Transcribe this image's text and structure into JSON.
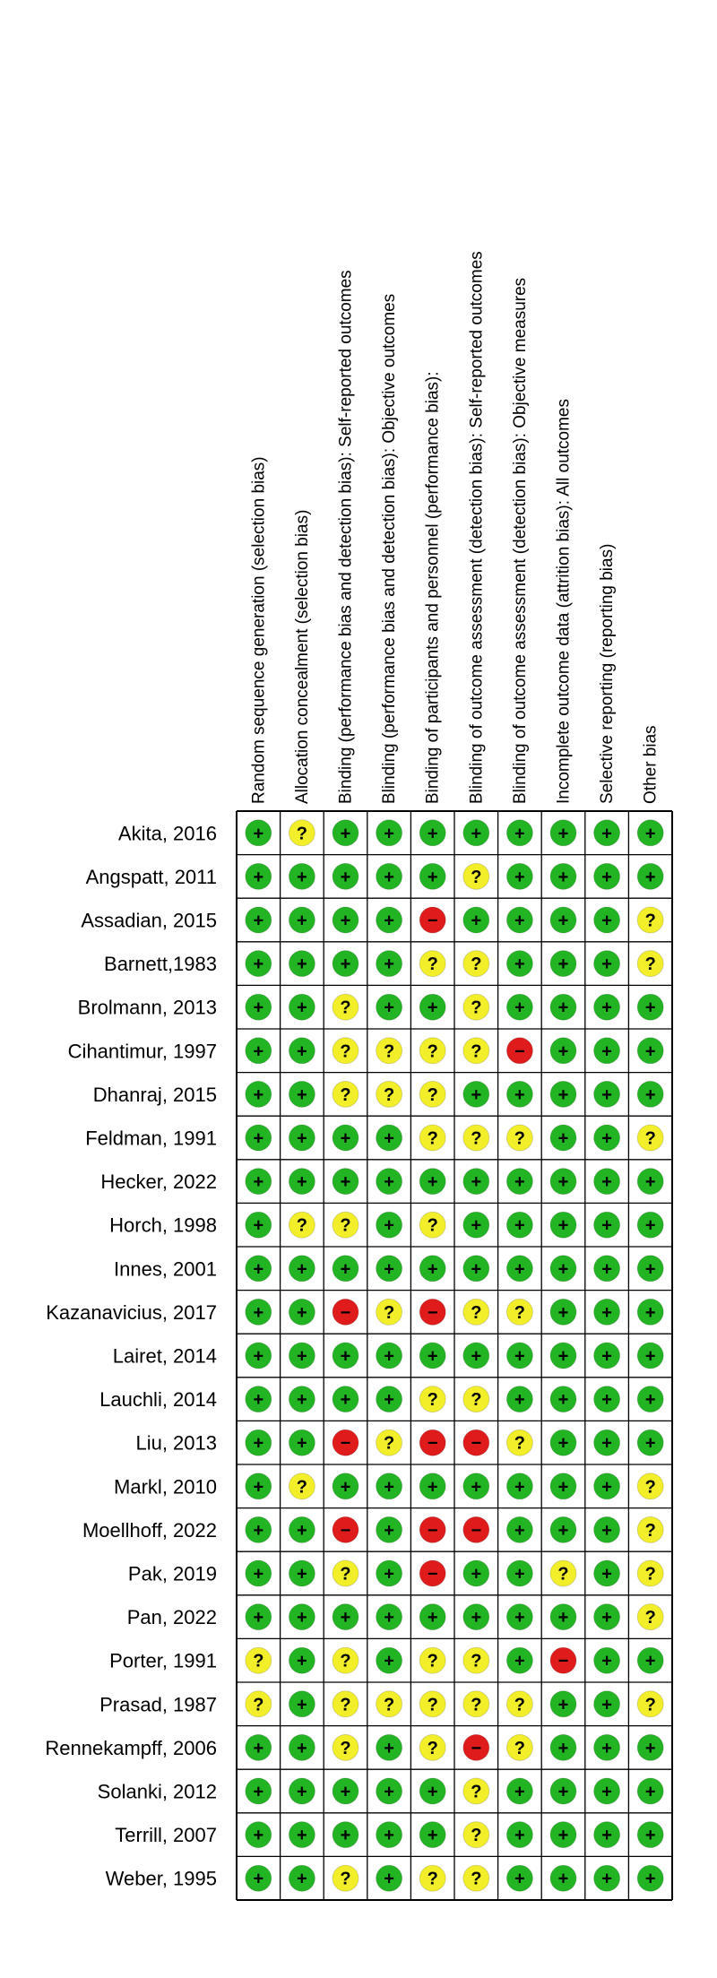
{
  "chart_data": {
    "type": "table",
    "title": "",
    "domains": [
      "Random sequence generation (selection bias)",
      "Allocation concealment (selection bias)",
      "Binding (performance bias and detection bias): Self-reported outcomes",
      "Blinding (performance bias and detection bias): Objective outcomes",
      "Binding of participants and personnel (performance bias):",
      "Blinding of outcome assessment (detection bias): Self-reported outcomes",
      "Blinding of outcome assessment (detection bias): Objective measures",
      "Incomplete outcome data (attrition bias): All outcomes",
      "Selective reporting (reporting bias)",
      "Other bias"
    ],
    "legend": {
      "low": {
        "symbol": "+",
        "color": "#22b422"
      },
      "unclear": {
        "symbol": "?",
        "color": "#f2ef2a"
      },
      "high": {
        "symbol": "−",
        "color": "#e01b1b"
      }
    },
    "studies": [
      {
        "name": "Akita, 2016",
        "ratings": [
          "low",
          "unclear",
          "low",
          "low",
          "low",
          "low",
          "low",
          "low",
          "low",
          "low"
        ]
      },
      {
        "name": "Angspatt, 2011",
        "ratings": [
          "low",
          "low",
          "low",
          "low",
          "low",
          "unclear",
          "low",
          "low",
          "low",
          "low"
        ]
      },
      {
        "name": "Assadian, 2015",
        "ratings": [
          "low",
          "low",
          "low",
          "low",
          "high",
          "low",
          "low",
          "low",
          "low",
          "unclear"
        ]
      },
      {
        "name": "Barnett,1983",
        "ratings": [
          "low",
          "low",
          "low",
          "low",
          "unclear",
          "unclear",
          "low",
          "low",
          "low",
          "unclear"
        ]
      },
      {
        "name": "Brolmann, 2013",
        "ratings": [
          "low",
          "low",
          "unclear",
          "low",
          "low",
          "unclear",
          "low",
          "low",
          "low",
          "low"
        ]
      },
      {
        "name": "Cihantimur, 1997",
        "ratings": [
          "low",
          "low",
          "unclear",
          "unclear",
          "unclear",
          "unclear",
          "high",
          "low",
          "low",
          "low"
        ]
      },
      {
        "name": "Dhanraj, 2015",
        "ratings": [
          "low",
          "low",
          "unclear",
          "unclear",
          "unclear",
          "low",
          "low",
          "low",
          "low",
          "low"
        ]
      },
      {
        "name": "Feldman, 1991",
        "ratings": [
          "low",
          "low",
          "low",
          "low",
          "unclear",
          "unclear",
          "unclear",
          "low",
          "low",
          "unclear"
        ]
      },
      {
        "name": "Hecker, 2022",
        "ratings": [
          "low",
          "low",
          "low",
          "low",
          "low",
          "low",
          "low",
          "low",
          "low",
          "low"
        ]
      },
      {
        "name": "Horch, 1998",
        "ratings": [
          "low",
          "unclear",
          "unclear",
          "low",
          "unclear",
          "low",
          "low",
          "low",
          "low",
          "low"
        ]
      },
      {
        "name": "Innes, 2001",
        "ratings": [
          "low",
          "low",
          "low",
          "low",
          "low",
          "low",
          "low",
          "low",
          "low",
          "low"
        ]
      },
      {
        "name": "Kazanavicius, 2017",
        "ratings": [
          "low",
          "low",
          "high",
          "unclear",
          "high",
          "unclear",
          "unclear",
          "low",
          "low",
          "low"
        ]
      },
      {
        "name": "Lairet, 2014",
        "ratings": [
          "low",
          "low",
          "low",
          "low",
          "low",
          "low",
          "low",
          "low",
          "low",
          "low"
        ]
      },
      {
        "name": "Lauchli, 2014",
        "ratings": [
          "low",
          "low",
          "low",
          "low",
          "unclear",
          "unclear",
          "low",
          "low",
          "low",
          "low"
        ]
      },
      {
        "name": "Liu, 2013",
        "ratings": [
          "low",
          "low",
          "high",
          "unclear",
          "high",
          "high",
          "unclear",
          "low",
          "low",
          "low"
        ]
      },
      {
        "name": "Markl, 2010",
        "ratings": [
          "low",
          "unclear",
          "low",
          "low",
          "low",
          "low",
          "low",
          "low",
          "low",
          "unclear"
        ]
      },
      {
        "name": "Moellhoff, 2022",
        "ratings": [
          "low",
          "low",
          "high",
          "low",
          "high",
          "high",
          "low",
          "low",
          "low",
          "unclear"
        ]
      },
      {
        "name": "Pak, 2019",
        "ratings": [
          "low",
          "low",
          "unclear",
          "low",
          "high",
          "low",
          "low",
          "unclear",
          "low",
          "unclear"
        ]
      },
      {
        "name": "Pan, 2022",
        "ratings": [
          "low",
          "low",
          "low",
          "low",
          "low",
          "low",
          "low",
          "low",
          "low",
          "unclear"
        ]
      },
      {
        "name": "Porter, 1991",
        "ratings": [
          "unclear",
          "low",
          "unclear",
          "low",
          "unclear",
          "unclear",
          "low",
          "high",
          "low",
          "low"
        ]
      },
      {
        "name": "Prasad, 1987",
        "ratings": [
          "unclear",
          "low",
          "unclear",
          "unclear",
          "unclear",
          "unclear",
          "unclear",
          "low",
          "low",
          "unclear"
        ]
      },
      {
        "name": "Rennekampff, 2006",
        "ratings": [
          "low",
          "low",
          "unclear",
          "low",
          "unclear",
          "high",
          "unclear",
          "low",
          "low",
          "low"
        ]
      },
      {
        "name": "Solanki, 2012",
        "ratings": [
          "low",
          "low",
          "low",
          "low",
          "low",
          "unclear",
          "low",
          "low",
          "low",
          "low"
        ]
      },
      {
        "name": "Terrill, 2007",
        "ratings": [
          "low",
          "low",
          "low",
          "low",
          "low",
          "unclear",
          "low",
          "low",
          "low",
          "low"
        ]
      },
      {
        "name": "Weber, 1995",
        "ratings": [
          "low",
          "low",
          "unclear",
          "low",
          "unclear",
          "unclear",
          "low",
          "low",
          "low",
          "low"
        ]
      }
    ]
  }
}
